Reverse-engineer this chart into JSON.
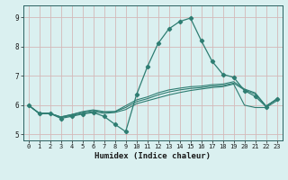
{
  "xlabel": "Humidex (Indice chaleur)",
  "bg_color": "#daf0f0",
  "grid_color": "#b8d8d8",
  "line_color": "#2e7d72",
  "xlim": [
    -0.5,
    23.5
  ],
  "ylim": [
    4.8,
    9.4
  ],
  "yticks": [
    5,
    6,
    7,
    8,
    9
  ],
  "xticks": [
    0,
    1,
    2,
    3,
    4,
    5,
    6,
    7,
    8,
    9,
    10,
    11,
    12,
    13,
    14,
    15,
    16,
    17,
    18,
    19,
    20,
    21,
    22,
    23
  ],
  "series_marked": [
    6.0,
    5.72,
    5.72,
    5.55,
    5.62,
    5.7,
    5.75,
    5.62,
    5.35,
    5.1,
    6.35,
    7.3,
    8.1,
    8.6,
    8.85,
    8.97,
    8.2,
    7.5,
    7.05,
    6.95,
    6.5,
    6.3,
    5.95,
    6.22
  ],
  "series_smooth": [
    [
      6.0,
      5.72,
      5.72,
      5.58,
      5.65,
      5.72,
      5.78,
      5.72,
      5.75,
      5.85,
      6.05,
      6.15,
      6.25,
      6.35,
      6.43,
      6.5,
      6.55,
      6.6,
      6.63,
      6.72,
      6.0,
      5.92,
      5.92,
      6.15
    ],
    [
      6.0,
      5.72,
      5.72,
      5.6,
      5.68,
      5.76,
      5.82,
      5.76,
      5.78,
      5.92,
      6.12,
      6.22,
      6.35,
      6.45,
      6.52,
      6.57,
      6.6,
      6.65,
      6.67,
      6.75,
      6.52,
      6.38,
      5.97,
      6.2
    ],
    [
      6.0,
      5.72,
      5.72,
      5.6,
      5.68,
      5.78,
      5.84,
      5.78,
      5.78,
      5.98,
      6.18,
      6.28,
      6.42,
      6.52,
      6.58,
      6.63,
      6.65,
      6.7,
      6.72,
      6.8,
      6.55,
      6.42,
      5.97,
      6.2
    ]
  ]
}
